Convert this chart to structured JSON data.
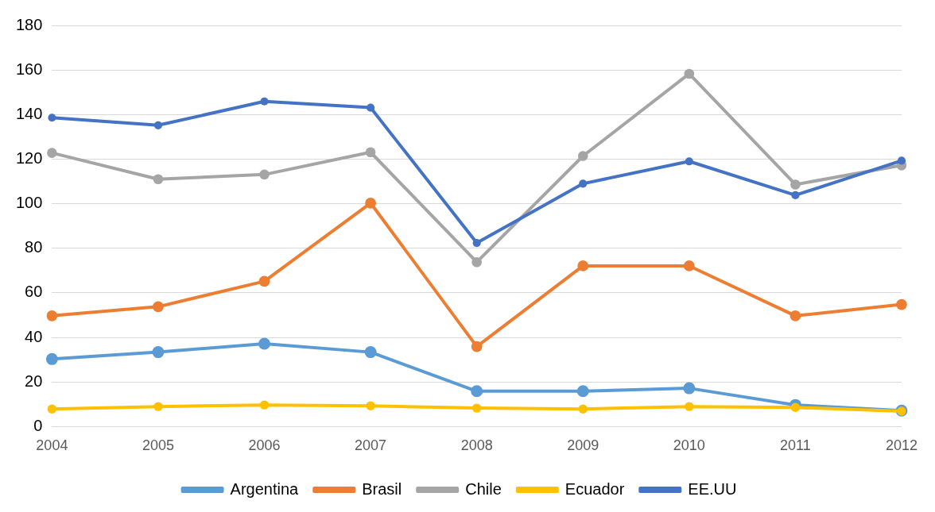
{
  "chart_data": {
    "type": "line",
    "categories": [
      "2004",
      "2005",
      "2006",
      "2007",
      "2008",
      "2009",
      "2010",
      "2011",
      "2012"
    ],
    "series": [
      {
        "name": "Argentina",
        "color": "#5b9bd5",
        "values": [
          30.3,
          33.4,
          37.2,
          33.4,
          15.9,
          15.9,
          17.2,
          9.7,
          7.2
        ]
      },
      {
        "name": "Brasil",
        "color": "#ed7d31",
        "values": [
          49.7,
          53.8,
          65.2,
          100.3,
          35.9,
          72.1,
          72.1,
          49.7,
          54.8
        ]
      },
      {
        "name": "Chile",
        "color": "#a5a5a5",
        "values": [
          122.8,
          111,
          113.1,
          123.1,
          73.8,
          121.4,
          158.3,
          108.6,
          117.2
        ]
      },
      {
        "name": "Ecuador",
        "color": "#ffc000",
        "values": [
          7.9,
          9,
          9.7,
          9.3,
          8.3,
          7.9,
          9,
          8.6,
          6.9
        ]
      },
      {
        "name": "EE.UU",
        "color": "#4472c4",
        "values": [
          138.6,
          135.2,
          145.9,
          143.1,
          82.4,
          109,
          119,
          103.8,
          119.3
        ]
      }
    ],
    "ylim": [
      0,
      180
    ],
    "yticks": [
      0,
      20,
      40,
      60,
      80,
      100,
      120,
      140,
      160,
      180
    ],
    "grid": "y",
    "legend": "bottom",
    "marker": "circle",
    "line_style": "solid"
  }
}
